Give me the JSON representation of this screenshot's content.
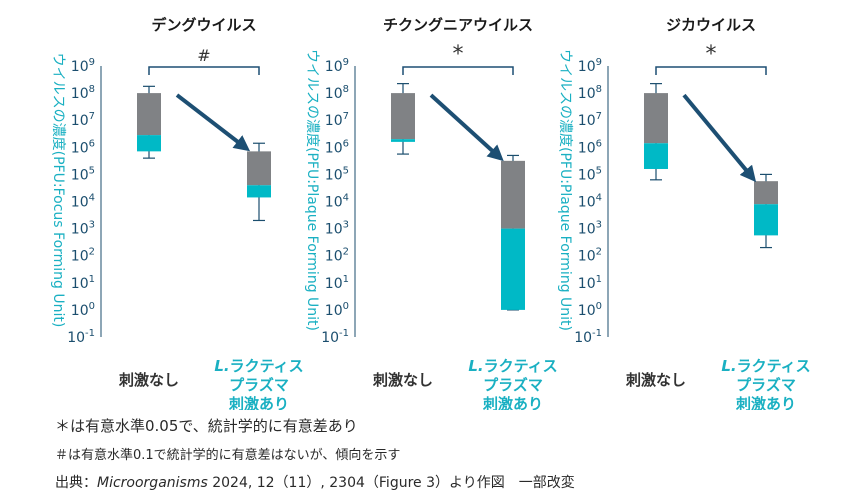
{
  "chart_data": [
    {
      "type": "box",
      "title": "デングウイルス",
      "ylabel": "ウイルスの濃度(PFU:Focus Forming Unit)",
      "yscale": "log10",
      "ylim_exponent": [
        -1,
        9
      ],
      "y_tick_exponents": [
        "-1",
        "0",
        "1",
        "2",
        "3",
        "4",
        "5",
        "6",
        "7",
        "8",
        "9"
      ],
      "categories": [
        "刺激なし",
        "L.ラクティスプラズマ刺激あり"
      ],
      "category_lines": [
        [
          "刺激なし"
        ],
        [
          "L.ラクティス",
          "プラズマ",
          "刺激あり"
        ]
      ],
      "boxes": [
        {
          "whisker_low": 5.6,
          "q1": 5.85,
          "median": 6.45,
          "q3": 8.0,
          "whisker_high": 8.25
        },
        {
          "whisker_low": 3.3,
          "q1": 4.15,
          "median": 4.6,
          "q3": 5.85,
          "whisker_high": 6.15
        }
      ],
      "significance": "#"
    },
    {
      "type": "box",
      "title": "チクングニアウイルス",
      "ylabel": "ウイルスの濃度(PFU:Plaque Forming Unit)",
      "yscale": "log10",
      "ylim_exponent": [
        -1,
        9
      ],
      "y_tick_exponents": [
        "-1",
        "0",
        "1",
        "2",
        "3",
        "4",
        "5",
        "6",
        "7",
        "8",
        "9"
      ],
      "categories": [
        "刺激なし",
        "L.ラクティスプラズマ刺激あり"
      ],
      "category_lines": [
        [
          "刺激なし"
        ],
        [
          "L.ラクティス",
          "プラズマ",
          "刺激あり"
        ]
      ],
      "boxes": [
        {
          "whisker_low": 5.75,
          "q1": 6.2,
          "median": 6.3,
          "q3": 8.0,
          "whisker_high": 8.35
        },
        {
          "whisker_low": 0.0,
          "q1": 0.0,
          "median": 3.0,
          "q3": 5.5,
          "whisker_high": 5.7
        }
      ],
      "significance": "*"
    },
    {
      "type": "box",
      "title": "ジカウイルス",
      "ylabel": "ウイルスの濃度(PFU:Plaque Forming Unit)",
      "yscale": "log10",
      "ylim_exponent": [
        -1,
        9
      ],
      "y_tick_exponents": [
        "-1",
        "0",
        "1",
        "2",
        "3",
        "4",
        "5",
        "6",
        "7",
        "8",
        "9"
      ],
      "categories": [
        "刺激なし",
        "L.ラクティスプラズマ刺激あり"
      ],
      "category_lines": [
        [
          "刺激なし"
        ],
        [
          "L.ラクティス",
          "プラズマ",
          "刺激あり"
        ]
      ],
      "boxes": [
        {
          "whisker_low": 4.8,
          "q1": 5.2,
          "median": 6.15,
          "q3": 8.0,
          "whisker_high": 8.35
        },
        {
          "whisker_low": 2.3,
          "q1": 2.75,
          "median": 3.9,
          "q3": 4.75,
          "whisker_high": 5.0
        }
      ],
      "significance": "*"
    }
  ],
  "colors": {
    "upper_box": "#808285",
    "lower_box": "#00b9c6",
    "title": "#1a1a1a",
    "axis_text": "#1b4e6e",
    "ylabel": "#1ab0c2",
    "treated_label": "#1ab0c2",
    "control_label": "#333333",
    "arrow": "#1d4f73",
    "whisker": "#1b4e6e"
  },
  "notes": {
    "line1": "＊は有意水準0.05で、統計学的に有意差あり",
    "line2": "＃は有意水準0.1で統計学的に有意差はないが、傾向を示す",
    "source_prefix": "出典：",
    "source_journal": "Microorganisms",
    "source_rest": "  2024, 12（11）, 2304（Figure 3）より作図　一部改変"
  }
}
